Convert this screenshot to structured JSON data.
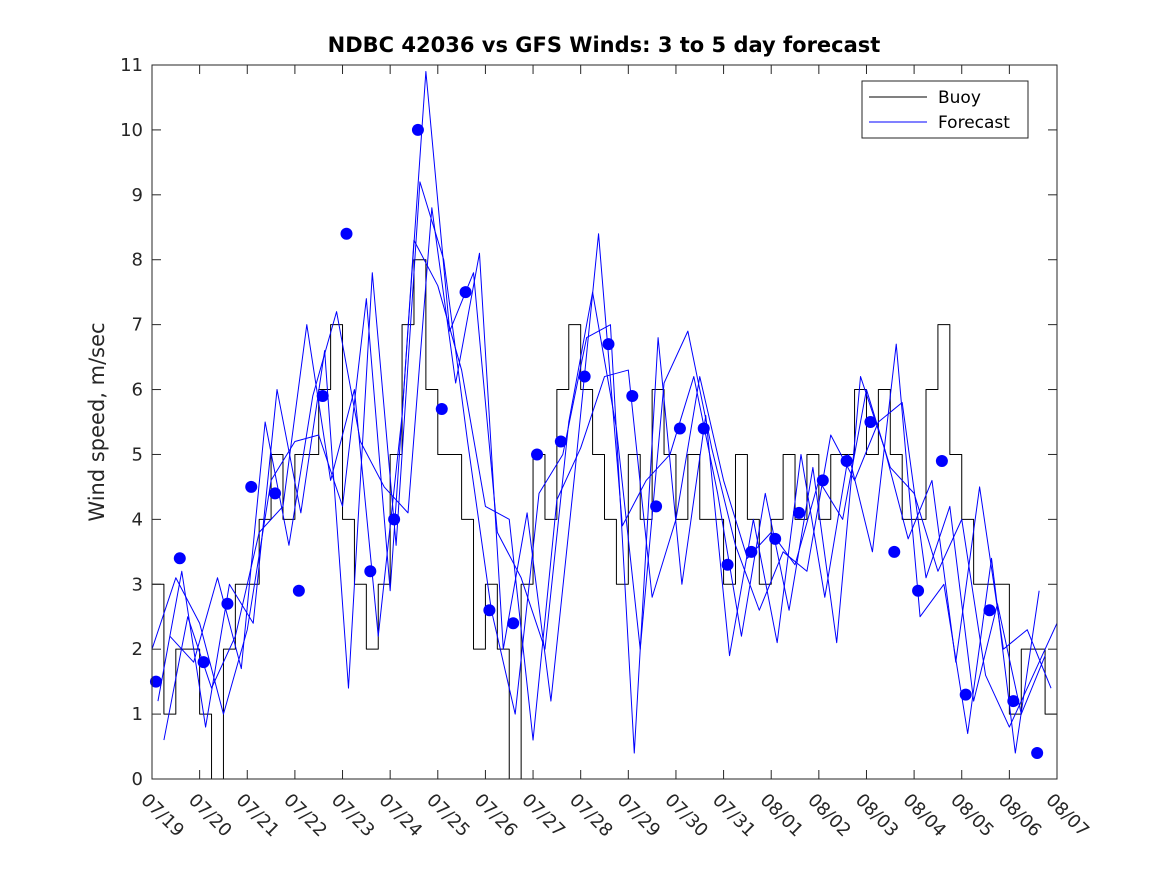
{
  "chart_data": {
    "type": "line",
    "title": "NDBC 42036 vs GFS Winds: 3 to 5 day forecast",
    "xlabel": "",
    "ylabel": "Wind speed, m/sec",
    "ylim": [
      0,
      11
    ],
    "xlim": [
      "2024-07-19",
      "2024-08-07"
    ],
    "yticks": [
      "0",
      "1",
      "2",
      "3",
      "4",
      "5",
      "6",
      "7",
      "8",
      "9",
      "10",
      "11"
    ],
    "xticks": [
      "07/19",
      "07/20",
      "07/21",
      "07/22",
      "07/23",
      "07/24",
      "07/25",
      "07/26",
      "07/27",
      "07/28",
      "07/29",
      "07/30",
      "07/31",
      "08/01",
      "08/02",
      "08/03",
      "08/04",
      "08/05",
      "08/06",
      "08/07"
    ],
    "grid": false,
    "legend": {
      "placement": "top-right",
      "entries": [
        "Buoy",
        "Forecast"
      ]
    },
    "colors": {
      "buoy": "#000000",
      "forecast": "#0000ff",
      "markers": "#0000ff"
    },
    "series": [
      {
        "name": "Buoy",
        "style": "step",
        "x": [
          "2024-07-19T00:00",
          "2024-07-19T06:00",
          "2024-07-19T12:00",
          "2024-07-19T18:00",
          "2024-07-20T00:00",
          "2024-07-20T06:00",
          "2024-07-20T12:00",
          "2024-07-20T18:00",
          "2024-07-21T00:00",
          "2024-07-21T06:00",
          "2024-07-21T12:00",
          "2024-07-21T18:00",
          "2024-07-22T00:00",
          "2024-07-22T06:00",
          "2024-07-22T12:00",
          "2024-07-22T18:00",
          "2024-07-23T00:00",
          "2024-07-23T06:00",
          "2024-07-23T12:00",
          "2024-07-23T18:00",
          "2024-07-24T00:00",
          "2024-07-24T06:00",
          "2024-07-24T12:00",
          "2024-07-24T18:00",
          "2024-07-25T00:00",
          "2024-07-25T06:00",
          "2024-07-25T12:00",
          "2024-07-25T18:00",
          "2024-07-26T00:00",
          "2024-07-26T06:00",
          "2024-07-26T12:00",
          "2024-07-26T18:00",
          "2024-07-27T00:00",
          "2024-07-27T06:00",
          "2024-07-27T12:00",
          "2024-07-27T18:00",
          "2024-07-28T00:00",
          "2024-07-28T06:00",
          "2024-07-28T12:00",
          "2024-07-28T18:00",
          "2024-07-29T00:00",
          "2024-07-29T06:00",
          "2024-07-29T12:00",
          "2024-07-29T18:00",
          "2024-07-30T00:00",
          "2024-07-30T06:00",
          "2024-07-30T12:00",
          "2024-07-30T18:00",
          "2024-07-31T00:00",
          "2024-07-31T06:00",
          "2024-07-31T12:00",
          "2024-07-31T18:00",
          "2024-08-01T00:00",
          "2024-08-01T06:00",
          "2024-08-01T12:00",
          "2024-08-01T18:00",
          "2024-08-02T00:00",
          "2024-08-02T06:00",
          "2024-08-02T12:00",
          "2024-08-02T18:00",
          "2024-08-03T00:00",
          "2024-08-03T06:00",
          "2024-08-03T12:00",
          "2024-08-03T18:00",
          "2024-08-04T00:00",
          "2024-08-04T06:00",
          "2024-08-04T12:00",
          "2024-08-04T18:00",
          "2024-08-05T00:00",
          "2024-08-05T06:00",
          "2024-08-05T12:00",
          "2024-08-05T18:00",
          "2024-08-06T00:00",
          "2024-08-06T06:00",
          "2024-08-06T12:00",
          "2024-08-06T18:00",
          "2024-08-07T00:00"
        ],
        "values": [
          3,
          1,
          2,
          2,
          1,
          0,
          2,
          3,
          3,
          4,
          5,
          4,
          5,
          5,
          6,
          7,
          4,
          3,
          2,
          3,
          5,
          7,
          8,
          6,
          5,
          5,
          4,
          2,
          3,
          2,
          0,
          3,
          5,
          4,
          6,
          7,
          6,
          5,
          4,
          3,
          5,
          4,
          6,
          5,
          4,
          5,
          4,
          4,
          3,
          5,
          4,
          3,
          4,
          5,
          4,
          5,
          4,
          5,
          5,
          6,
          5,
          6,
          5,
          4,
          4,
          6,
          7,
          5,
          4,
          3,
          3,
          3,
          1,
          2,
          2,
          1,
          1
        ]
      },
      {
        "name": "Forecast",
        "x": [
          "2024-07-19T00:00",
          "2024-07-19T12:00",
          "2024-07-20T00:00",
          "2024-07-20T12:00",
          "2024-07-21T00:00",
          "2024-07-21T12:00",
          "2024-07-22T00:00",
          "2024-07-22T12:00",
          "2024-07-23T00:00",
          "2024-07-23T12:00",
          "2024-07-24T00:00",
          "2024-07-24T12:00",
          "2024-07-25T00:00",
          "2024-07-25T12:00",
          "2024-07-26T00:00",
          "2024-07-26T12:00",
          "2024-07-27T00:00",
          "2024-07-27T12:00",
          "2024-07-28T00:00",
          "2024-07-28T12:00",
          "2024-07-29T00:00",
          "2024-07-29T12:00",
          "2024-07-30T00:00",
          "2024-07-30T12:00",
          "2024-07-31T00:00",
          "2024-07-31T12:00",
          "2024-08-01T00:00",
          "2024-08-01T12:00",
          "2024-08-02T00:00",
          "2024-08-02T12:00",
          "2024-08-03T00:00",
          "2024-08-03T12:00",
          "2024-08-04T00:00",
          "2024-08-04T12:00",
          "2024-08-05T00:00",
          "2024-08-05T12:00",
          "2024-08-06T00:00",
          "2024-08-06T12:00",
          "2024-08-07T00:00"
        ],
        "values": [
          2.0,
          3.1,
          2.4,
          1.0,
          2.3,
          4.6,
          5.2,
          5.3,
          4.2,
          7.4,
          2.9,
          8.3,
          7.6,
          6.3,
          4.2,
          4.0,
          0.6,
          4.3,
          5.1,
          6.2,
          6.3,
          2.8,
          4.0,
          6.2,
          4.6,
          3.4,
          3.8,
          3.3,
          4.6,
          4.0,
          6.0,
          4.8,
          4.4,
          3.2,
          4.0,
          1.6,
          0.8,
          1.6,
          2.4
        ]
      },
      {
        "name": "Forecast",
        "x": [
          "2024-07-19T06:00",
          "2024-07-19T18:00",
          "2024-07-20T06:00",
          "2024-07-20T18:00",
          "2024-07-21T06:00",
          "2024-07-21T18:00",
          "2024-07-22T06:00",
          "2024-07-22T18:00",
          "2024-07-23T06:00",
          "2024-07-23T18:00",
          "2024-07-24T06:00",
          "2024-07-24T18:00",
          "2024-07-25T06:00",
          "2024-07-25T18:00",
          "2024-07-26T06:00",
          "2024-07-26T18:00",
          "2024-07-27T06:00",
          "2024-07-27T18:00",
          "2024-07-28T06:00",
          "2024-07-28T18:00",
          "2024-07-29T06:00",
          "2024-07-29T18:00",
          "2024-07-30T06:00",
          "2024-07-30T18:00",
          "2024-07-31T06:00",
          "2024-07-31T18:00",
          "2024-08-01T06:00",
          "2024-08-01T18:00",
          "2024-08-02T06:00",
          "2024-08-02T18:00",
          "2024-08-03T06:00",
          "2024-08-03T18:00",
          "2024-08-04T06:00",
          "2024-08-04T18:00",
          "2024-08-05T06:00",
          "2024-08-05T18:00",
          "2024-08-06T06:00",
          "2024-08-06T18:00"
        ],
        "values": [
          0.6,
          2.5,
          1.4,
          2.2,
          3.8,
          4.2,
          7.0,
          4.6,
          6.0,
          2.2,
          5.6,
          10.9,
          6.9,
          7.8,
          3.8,
          3.1,
          2.0,
          5.5,
          7.5,
          5.4,
          2.0,
          6.1,
          6.9,
          5.1,
          3.6,
          2.6,
          3.5,
          3.2,
          5.3,
          4.6,
          5.5,
          5.8,
          3.1,
          4.2,
          1.2,
          2.7,
          1.0,
          1.9
        ]
      },
      {
        "name": "Forecast",
        "x": [
          "2024-07-19T03:00",
          "2024-07-19T15:00",
          "2024-07-20T03:00",
          "2024-07-20T15:00",
          "2024-07-21T03:00",
          "2024-07-21T15:00",
          "2024-07-22T03:00",
          "2024-07-22T15:00",
          "2024-07-23T03:00",
          "2024-07-23T15:00",
          "2024-07-24T03:00",
          "2024-07-24T15:00",
          "2024-07-25T03:00",
          "2024-07-25T15:00",
          "2024-07-26T03:00",
          "2024-07-26T15:00",
          "2024-07-27T03:00",
          "2024-07-27T15:00",
          "2024-07-28T03:00",
          "2024-07-28T15:00",
          "2024-07-29T03:00",
          "2024-07-29T15:00",
          "2024-07-30T03:00",
          "2024-07-30T15:00",
          "2024-07-31T03:00",
          "2024-07-31T15:00",
          "2024-08-01T03:00",
          "2024-08-01T15:00",
          "2024-08-02T03:00",
          "2024-08-02T15:00",
          "2024-08-03T03:00",
          "2024-08-03T15:00",
          "2024-08-04T03:00",
          "2024-08-04T15:00",
          "2024-08-05T03:00",
          "2024-08-05T15:00",
          "2024-08-06T03:00",
          "2024-08-06T15:00"
        ],
        "values": [
          1.2,
          3.2,
          0.8,
          3.0,
          2.4,
          6.0,
          4.1,
          6.6,
          1.4,
          7.8,
          3.6,
          9.2,
          8.0,
          5.2,
          2.6,
          1.0,
          4.4,
          5.0,
          6.8,
          7.0,
          0.4,
          6.8,
          3.0,
          5.6,
          1.9,
          4.0,
          2.1,
          5.0,
          2.8,
          5.0,
          3.5,
          6.7,
          2.5,
          3.0,
          0.7,
          3.4,
          0.4,
          2.9
        ]
      },
      {
        "name": "Forecast",
        "x": [
          "2024-07-19T09:00",
          "2024-07-19T21:00",
          "2024-07-20T09:00",
          "2024-07-20T21:00",
          "2024-07-21T09:00",
          "2024-07-21T21:00",
          "2024-07-22T09:00",
          "2024-07-22T21:00",
          "2024-07-23T09:00",
          "2024-07-23T21:00",
          "2024-07-24T09:00",
          "2024-07-24T21:00",
          "2024-07-25T09:00",
          "2024-07-25T21:00",
          "2024-07-26T09:00",
          "2024-07-26T21:00",
          "2024-07-27T09:00",
          "2024-07-27T21:00",
          "2024-07-28T09:00",
          "2024-07-28T21:00",
          "2024-07-29T09:00",
          "2024-07-29T21:00",
          "2024-07-30T09:00",
          "2024-07-30T21:00",
          "2024-07-31T09:00",
          "2024-07-31T21:00",
          "2024-08-01T09:00",
          "2024-08-01T21:00",
          "2024-08-02T09:00",
          "2024-08-02T21:00",
          "2024-08-03T09:00",
          "2024-08-03T21:00",
          "2024-08-04T09:00",
          "2024-08-04T21:00",
          "2024-08-05T09:00",
          "2024-08-05T21:00",
          "2024-08-06T09:00",
          "2024-08-06T21:00"
        ],
        "values": [
          2.2,
          1.8,
          3.1,
          1.7,
          5.5,
          3.6,
          5.9,
          7.2,
          5.2,
          4.5,
          4.1,
          8.8,
          6.1,
          8.1,
          2.0,
          4.1,
          1.2,
          4.7,
          8.4,
          3.9,
          4.6,
          5.0,
          6.2,
          4.4,
          2.2,
          4.4,
          2.6,
          4.8,
          2.1,
          6.2,
          5.1,
          3.7,
          4.6,
          1.8,
          4.5,
          2.0,
          2.3,
          1.4
        ]
      },
      {
        "name": "Forecast",
        "style": "markers",
        "x": [
          "2024-07-19T02:00",
          "2024-07-19T14:00",
          "2024-07-20T02:00",
          "2024-07-20T14:00",
          "2024-07-21T02:00",
          "2024-07-21T14:00",
          "2024-07-22T02:00",
          "2024-07-22T14:00",
          "2024-07-23T02:00",
          "2024-07-23T14:00",
          "2024-07-24T02:00",
          "2024-07-24T14:00",
          "2024-07-25T02:00",
          "2024-07-25T14:00",
          "2024-07-26T02:00",
          "2024-07-26T14:00",
          "2024-07-27T02:00",
          "2024-07-27T14:00",
          "2024-07-28T02:00",
          "2024-07-28T14:00",
          "2024-07-29T02:00",
          "2024-07-29T14:00",
          "2024-07-30T02:00",
          "2024-07-30T14:00",
          "2024-07-31T02:00",
          "2024-07-31T14:00",
          "2024-08-01T02:00",
          "2024-08-01T14:00",
          "2024-08-02T02:00",
          "2024-08-02T14:00",
          "2024-08-03T02:00",
          "2024-08-03T14:00",
          "2024-08-04T02:00",
          "2024-08-04T14:00",
          "2024-08-05T02:00",
          "2024-08-05T14:00",
          "2024-08-06T02:00",
          "2024-08-06T14:00"
        ],
        "values": [
          1.5,
          3.4,
          1.8,
          2.7,
          4.5,
          4.4,
          2.9,
          5.9,
          8.4,
          3.2,
          4.0,
          10.0,
          5.7,
          7.5,
          2.6,
          2.4,
          5.0,
          5.2,
          6.2,
          6.7,
          5.9,
          4.2,
          5.4,
          5.4,
          3.3,
          3.5,
          3.7,
          4.1,
          4.6,
          4.9,
          5.5,
          3.5,
          2.9,
          4.9,
          1.3,
          2.6,
          1.2,
          0.4
        ]
      }
    ]
  }
}
